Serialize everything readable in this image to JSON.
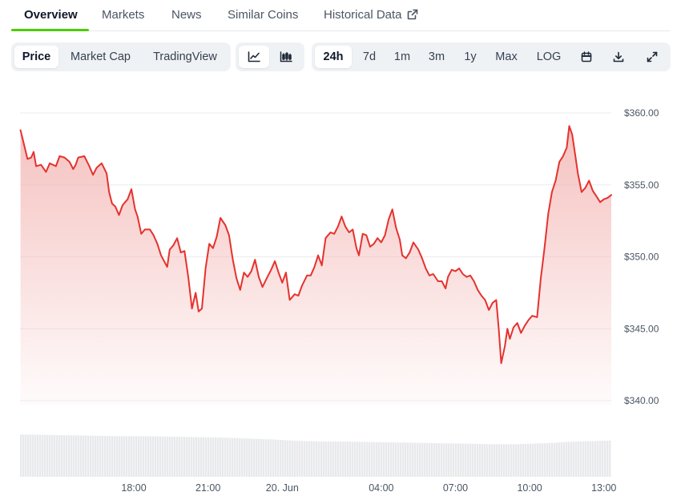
{
  "tabs": [
    {
      "label": "Overview",
      "active": true
    },
    {
      "label": "Markets"
    },
    {
      "label": "News"
    },
    {
      "label": "Similar Coins"
    },
    {
      "label": "Historical Data",
      "icon": "external-link-icon"
    }
  ],
  "chart_modes": [
    {
      "label": "Price",
      "active": true
    },
    {
      "label": "Market Cap"
    },
    {
      "label": "TradingView"
    }
  ],
  "chart_styles": [
    {
      "icon": "line-chart-icon",
      "active": true
    },
    {
      "icon": "candlestick-chart-icon"
    }
  ],
  "ranges": [
    {
      "label": "24h",
      "active": true
    },
    {
      "label": "7d"
    },
    {
      "label": "1m"
    },
    {
      "label": "3m"
    },
    {
      "label": "1y"
    },
    {
      "label": "Max"
    },
    {
      "label": "LOG"
    }
  ],
  "tools": [
    {
      "icon": "calendar-icon"
    },
    {
      "icon": "download-icon"
    },
    {
      "icon": "expand-icon"
    }
  ],
  "colors": {
    "accent_tab": "#4bcc00",
    "line": "#e5322d",
    "area_top": "#f3b7b5",
    "volume": "#e8e9ec"
  },
  "chart_data": {
    "type": "area",
    "ylim": [
      340,
      360
    ],
    "yticks": [
      {
        "v": 360,
        "label": "$360.00"
      },
      {
        "v": 355,
        "label": "$355.00"
      },
      {
        "v": 350,
        "label": "$350.00"
      },
      {
        "v": 345,
        "label": "$345.00"
      },
      {
        "v": 340,
        "label": "$340.00"
      }
    ],
    "x_range_hours": [
      13.4,
      37.3
    ],
    "xticks": [
      {
        "h": 18,
        "label": "18:00"
      },
      {
        "h": 21,
        "label": "21:00"
      },
      {
        "h": 24,
        "label": "20. Jun"
      },
      {
        "h": 28,
        "label": "04:00"
      },
      {
        "h": 31,
        "label": "07:00"
      },
      {
        "h": 34,
        "label": "10:00"
      },
      {
        "h": 37,
        "label": "13:00"
      }
    ],
    "price_series": [
      [
        13.42,
        358.8
      ],
      [
        13.55,
        357.9
      ],
      [
        13.7,
        356.8
      ],
      [
        13.85,
        356.9
      ],
      [
        13.95,
        357.3
      ],
      [
        14.05,
        356.3
      ],
      [
        14.25,
        356.4
      ],
      [
        14.45,
        355.9
      ],
      [
        14.6,
        356.5
      ],
      [
        14.85,
        356.3
      ],
      [
        15.0,
        357.0
      ],
      [
        15.2,
        356.9
      ],
      [
        15.4,
        356.6
      ],
      [
        15.55,
        356.1
      ],
      [
        15.65,
        356.4
      ],
      [
        15.75,
        356.9
      ],
      [
        16.0,
        357.0
      ],
      [
        16.2,
        356.3
      ],
      [
        16.35,
        355.7
      ],
      [
        16.5,
        356.2
      ],
      [
        16.7,
        356.5
      ],
      [
        16.9,
        355.8
      ],
      [
        17.0,
        354.5
      ],
      [
        17.12,
        353.7
      ],
      [
        17.25,
        353.5
      ],
      [
        17.4,
        352.9
      ],
      [
        17.55,
        353.6
      ],
      [
        17.75,
        354.0
      ],
      [
        17.9,
        354.7
      ],
      [
        18.05,
        353.3
      ],
      [
        18.15,
        352.8
      ],
      [
        18.3,
        351.6
      ],
      [
        18.45,
        351.9
      ],
      [
        18.65,
        351.9
      ],
      [
        18.8,
        351.5
      ],
      [
        18.95,
        350.9
      ],
      [
        19.1,
        350.1
      ],
      [
        19.35,
        349.3
      ],
      [
        19.45,
        350.5
      ],
      [
        19.6,
        350.8
      ],
      [
        19.75,
        351.3
      ],
      [
        19.9,
        350.3
      ],
      [
        20.05,
        350.4
      ],
      [
        20.2,
        348.6
      ],
      [
        20.35,
        346.4
      ],
      [
        20.5,
        347.5
      ],
      [
        20.62,
        346.2
      ],
      [
        20.75,
        346.4
      ],
      [
        20.9,
        349.2
      ],
      [
        21.05,
        350.9
      ],
      [
        21.2,
        350.6
      ],
      [
        21.35,
        351.4
      ],
      [
        21.5,
        352.7
      ],
      [
        21.7,
        352.2
      ],
      [
        21.85,
        351.5
      ],
      [
        22.0,
        349.8
      ],
      [
        22.15,
        348.5
      ],
      [
        22.3,
        347.7
      ],
      [
        22.45,
        348.9
      ],
      [
        22.6,
        348.6
      ],
      [
        22.75,
        349.0
      ],
      [
        22.9,
        349.8
      ],
      [
        23.05,
        348.6
      ],
      [
        23.2,
        347.9
      ],
      [
        23.4,
        348.6
      ],
      [
        23.55,
        349.1
      ],
      [
        23.7,
        349.7
      ],
      [
        23.85,
        348.9
      ],
      [
        24.0,
        348.2
      ],
      [
        24.15,
        348.9
      ],
      [
        24.3,
        347.0
      ],
      [
        24.5,
        347.4
      ],
      [
        24.65,
        347.3
      ],
      [
        24.8,
        348.0
      ],
      [
        25.0,
        348.7
      ],
      [
        25.15,
        348.7
      ],
      [
        25.3,
        349.3
      ],
      [
        25.45,
        350.1
      ],
      [
        25.6,
        349.4
      ],
      [
        25.75,
        351.3
      ],
      [
        25.95,
        351.7
      ],
      [
        26.1,
        351.6
      ],
      [
        26.25,
        352.1
      ],
      [
        26.4,
        352.8
      ],
      [
        26.55,
        352.1
      ],
      [
        26.7,
        351.7
      ],
      [
        26.85,
        351.9
      ],
      [
        27.0,
        350.6
      ],
      [
        27.1,
        350.1
      ],
      [
        27.25,
        351.6
      ],
      [
        27.4,
        351.5
      ],
      [
        27.55,
        350.7
      ],
      [
        27.7,
        350.9
      ],
      [
        27.85,
        351.3
      ],
      [
        28.0,
        351.0
      ],
      [
        28.15,
        351.5
      ],
      [
        28.3,
        352.6
      ],
      [
        28.45,
        353.3
      ],
      [
        28.6,
        352.0
      ],
      [
        28.75,
        351.2
      ],
      [
        28.85,
        350.1
      ],
      [
        29.0,
        349.9
      ],
      [
        29.15,
        350.3
      ],
      [
        29.3,
        351.0
      ],
      [
        29.5,
        350.5
      ],
      [
        29.65,
        349.9
      ],
      [
        29.8,
        349.2
      ],
      [
        29.95,
        348.7
      ],
      [
        30.1,
        348.8
      ],
      [
        30.3,
        348.3
      ],
      [
        30.45,
        348.3
      ],
      [
        30.6,
        347.8
      ],
      [
        30.7,
        348.6
      ],
      [
        30.85,
        349.1
      ],
      [
        31.0,
        349.0
      ],
      [
        31.15,
        349.2
      ],
      [
        31.3,
        348.8
      ],
      [
        31.45,
        348.6
      ],
      [
        31.6,
        348.7
      ],
      [
        31.75,
        348.3
      ],
      [
        31.9,
        347.7
      ],
      [
        32.05,
        347.3
      ],
      [
        32.2,
        347.0
      ],
      [
        32.35,
        346.3
      ],
      [
        32.5,
        346.8
      ],
      [
        32.65,
        347.0
      ],
      [
        32.75,
        345.0
      ],
      [
        32.85,
        342.6
      ],
      [
        33.0,
        343.8
      ],
      [
        33.1,
        345.0
      ],
      [
        33.2,
        344.3
      ],
      [
        33.35,
        345.1
      ],
      [
        33.5,
        345.4
      ],
      [
        33.65,
        344.7
      ],
      [
        33.8,
        345.2
      ],
      [
        33.95,
        345.6
      ],
      [
        34.1,
        345.9
      ],
      [
        34.3,
        345.8
      ],
      [
        34.45,
        348.5
      ],
      [
        34.6,
        350.6
      ],
      [
        34.75,
        353.0
      ],
      [
        34.9,
        354.5
      ],
      [
        35.05,
        355.3
      ],
      [
        35.2,
        356.6
      ],
      [
        35.35,
        357.0
      ],
      [
        35.5,
        357.6
      ],
      [
        35.6,
        359.1
      ],
      [
        35.72,
        358.5
      ],
      [
        35.85,
        357.0
      ],
      [
        35.95,
        355.8
      ],
      [
        36.1,
        354.5
      ],
      [
        36.25,
        354.8
      ],
      [
        36.4,
        355.3
      ],
      [
        36.55,
        354.6
      ],
      [
        36.7,
        354.2
      ],
      [
        36.85,
        353.8
      ],
      [
        37.0,
        354.0
      ],
      [
        37.15,
        354.1
      ],
      [
        37.3,
        354.3
      ]
    ],
    "volume_series": [
      [
        13.4,
        0.96
      ],
      [
        14.5,
        0.95
      ],
      [
        15.5,
        0.94
      ],
      [
        16.5,
        0.93
      ],
      [
        17.5,
        0.92
      ],
      [
        18.5,
        0.92
      ],
      [
        19.5,
        0.91
      ],
      [
        20.5,
        0.9
      ],
      [
        21.5,
        0.89
      ],
      [
        22.5,
        0.87
      ],
      [
        23.5,
        0.85
      ],
      [
        24.5,
        0.82
      ],
      [
        25.5,
        0.8
      ],
      [
        26.5,
        0.8
      ],
      [
        27.5,
        0.79
      ],
      [
        28.5,
        0.78
      ],
      [
        29.5,
        0.77
      ],
      [
        30.5,
        0.76
      ],
      [
        31.5,
        0.75
      ],
      [
        32.5,
        0.74
      ],
      [
        33.0,
        0.74
      ],
      [
        33.5,
        0.74
      ],
      [
        34.0,
        0.75
      ],
      [
        34.5,
        0.76
      ],
      [
        35.0,
        0.77
      ],
      [
        35.5,
        0.79
      ],
      [
        36.0,
        0.8
      ],
      [
        36.5,
        0.81
      ],
      [
        37.0,
        0.82
      ],
      [
        37.3,
        0.82
      ]
    ]
  }
}
